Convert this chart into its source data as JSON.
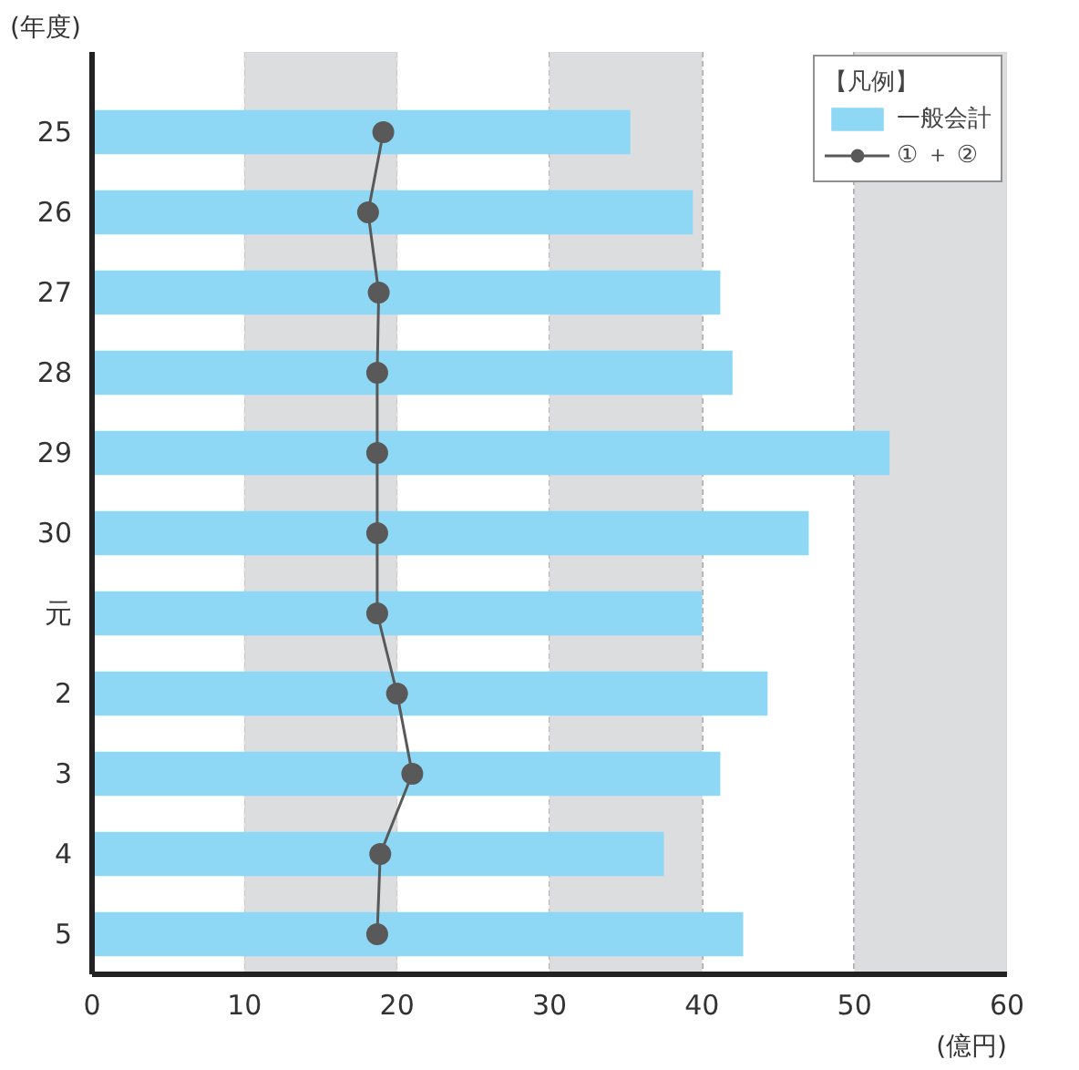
{
  "chart_data": {
    "type": "bar",
    "orientation": "horizontal",
    "xlabel": "(億円)",
    "ylabel": "(年度)",
    "legend_title": "【凡例】",
    "categories": [
      "25",
      "26",
      "27",
      "28",
      "29",
      "30",
      "元",
      "2",
      "3",
      "4",
      "5"
    ],
    "series": [
      {
        "name": "一般会計",
        "color": "#8ed8f6",
        "values": [
          35.3,
          39.4,
          41.2,
          42.0,
          52.3,
          47.0,
          40.0,
          44.3,
          41.2,
          37.5,
          42.7
        ]
      },
      {
        "name": "① ＋ ②",
        "type": "line",
        "color": "#595959",
        "marker": "circle",
        "values": [
          19.1,
          18.1,
          18.8,
          18.7,
          18.7,
          18.7,
          18.7,
          20.0,
          21.0,
          18.9,
          18.7
        ]
      }
    ],
    "xlim": [
      0,
      60
    ],
    "xticks": [
      0,
      10,
      20,
      30,
      40,
      50,
      60
    ],
    "grid": "x",
    "legend": "top right",
    "bands": [
      {
        "axis": "x",
        "from": 10,
        "to": 20,
        "color": "#dcdddf"
      },
      {
        "axis": "x",
        "from": 30,
        "to": 40,
        "color": "#dcdddf"
      },
      {
        "axis": "x",
        "from": 50,
        "to": 60,
        "color": "#dcdddf"
      }
    ]
  }
}
